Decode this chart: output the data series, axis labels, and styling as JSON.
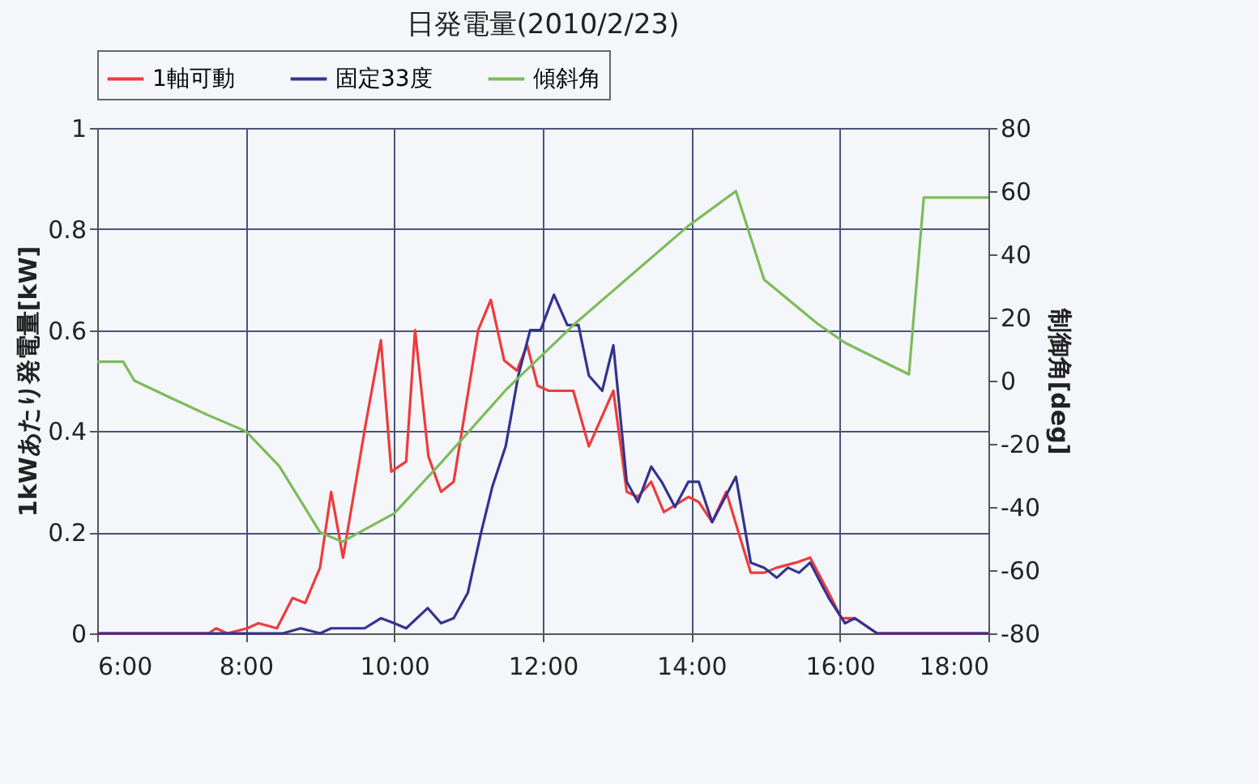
{
  "chart_data": {
    "type": "line",
    "title": "日発電量(2010/2/23)",
    "ylabel": "1kWあたり発電量[kW]",
    "y2label": "制御角[deg]",
    "xlim": [
      6,
      18
    ],
    "xticks": [
      {
        "value": 6,
        "label": "6:00"
      },
      {
        "value": 8,
        "label": "8:00"
      },
      {
        "value": 10,
        "label": "10:00"
      },
      {
        "value": 12,
        "label": "12:00"
      },
      {
        "value": 14,
        "label": "14:00"
      },
      {
        "value": 16,
        "label": "16:00"
      },
      {
        "value": 18,
        "label": "18:00"
      }
    ],
    "ylim": [
      0,
      1
    ],
    "yticks": [
      0,
      0.2,
      0.4,
      0.6,
      0.8,
      1
    ],
    "y2lim": [
      -80,
      80
    ],
    "y2ticks": [
      -80,
      -60,
      -40,
      -20,
      0,
      20,
      40,
      60,
      80
    ],
    "grid": true,
    "legend": "top",
    "series": [
      {
        "name": "1軸可動",
        "color": "#ee3b3b",
        "x": [
          6,
          7.5,
          7.6,
          7.75,
          8.02,
          8.17,
          8.42,
          8.63,
          8.8,
          9.0,
          9.15,
          9.31,
          9.61,
          9.82,
          9.96,
          10.16,
          10.28,
          10.46,
          10.63,
          10.8,
          10.91,
          11.13,
          11.3,
          11.48,
          11.65,
          11.79,
          11.93,
          12.08,
          12.41,
          12.62,
          12.95,
          13.13,
          13.28,
          13.46,
          13.63,
          13.96,
          14.1,
          14.28,
          14.47,
          14.8,
          14.98,
          15.15,
          15.41,
          15.6,
          15.85,
          16.02,
          16.2,
          16.5,
          18
        ],
        "values": [
          0,
          0,
          0.01,
          0,
          0.01,
          0.02,
          0.01,
          0.07,
          0.06,
          0.13,
          0.28,
          0.15,
          0.41,
          0.58,
          0.32,
          0.34,
          0.6,
          0.35,
          0.28,
          0.3,
          0.4,
          0.6,
          0.66,
          0.54,
          0.52,
          0.57,
          0.49,
          0.48,
          0.48,
          0.37,
          0.48,
          0.28,
          0.27,
          0.3,
          0.24,
          0.27,
          0.26,
          0.22,
          0.28,
          0.12,
          0.12,
          0.13,
          0.14,
          0.15,
          0.08,
          0.03,
          0.03,
          0,
          0
        ]
      },
      {
        "name": "固定33度",
        "color": "#33338f",
        "x": [
          6,
          8.5,
          8.74,
          9.0,
          9.15,
          9.6,
          9.82,
          10.0,
          10.16,
          10.45,
          10.63,
          10.8,
          10.99,
          11.17,
          11.32,
          11.5,
          11.67,
          11.83,
          11.97,
          12.15,
          12.33,
          12.48,
          12.62,
          12.8,
          12.95,
          13.13,
          13.28,
          13.46,
          13.6,
          13.78,
          13.96,
          14.1,
          14.28,
          14.6,
          14.8,
          14.98,
          15.15,
          15.3,
          15.45,
          15.6,
          15.85,
          16.07,
          16.2,
          16.5,
          18
        ],
        "values": [
          0,
          0,
          0.01,
          0,
          0.01,
          0.01,
          0.03,
          0.02,
          0.01,
          0.05,
          0.02,
          0.03,
          0.08,
          0.2,
          0.29,
          0.37,
          0.51,
          0.6,
          0.6,
          0.67,
          0.61,
          0.61,
          0.51,
          0.48,
          0.57,
          0.3,
          0.26,
          0.33,
          0.3,
          0.25,
          0.3,
          0.3,
          0.22,
          0.31,
          0.14,
          0.13,
          0.11,
          0.13,
          0.12,
          0.14,
          0.07,
          0.02,
          0.03,
          0,
          0
        ]
      },
      {
        "name": "傾斜角",
        "color": "#7dbb5a",
        "axis": "y2",
        "x": [
          6,
          6.35,
          6.5,
          6.95,
          7.5,
          8,
          8.45,
          9,
          9.3,
          10,
          10.63,
          11.5,
          12.43,
          13.96,
          14.6,
          14.98,
          15.7,
          16.07,
          16.93,
          17.13,
          18
        ],
        "values": [
          6,
          6,
          0,
          -5,
          -11,
          -16,
          -27,
          -48,
          -51,
          -42,
          -26,
          -3,
          18,
          49,
          60,
          32,
          18,
          12,
          2,
          58,
          58
        ]
      }
    ]
  }
}
